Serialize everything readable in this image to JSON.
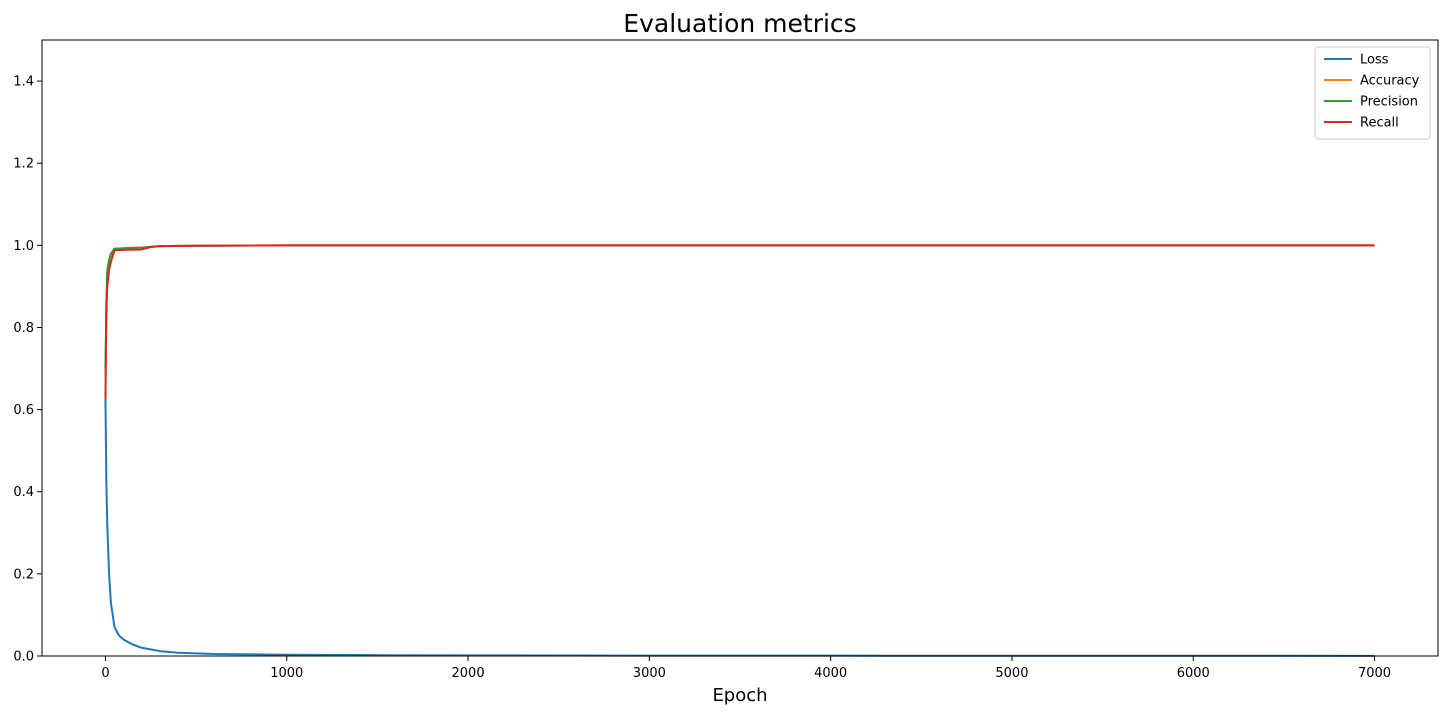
{
  "chart_data": {
    "type": "line",
    "title": "Evaluation metrics",
    "xlabel": "Epoch",
    "ylabel": "",
    "xlim": [
      -350,
      7350
    ],
    "ylim": [
      0,
      1.5
    ],
    "xticks": [
      0,
      1000,
      2000,
      3000,
      4000,
      5000,
      6000,
      7000
    ],
    "yticks": [
      0.0,
      0.2,
      0.4,
      0.6,
      0.8,
      1.0,
      1.2,
      1.4
    ],
    "grid": false,
    "legend_position": "top-right",
    "series": [
      {
        "name": "Loss",
        "color": "#1f77b4",
        "x": [
          0,
          5,
          10,
          20,
          30,
          50,
          75,
          100,
          150,
          200,
          300,
          400,
          600,
          800,
          1000,
          1500,
          2000,
          3000,
          4000,
          5000,
          6000,
          7000
        ],
        "y": [
          0.625,
          0.42,
          0.32,
          0.2,
          0.13,
          0.07,
          0.05,
          0.04,
          0.028,
          0.02,
          0.012,
          0.008,
          0.005,
          0.004,
          0.003,
          0.002,
          0.0015,
          0.001,
          0.0008,
          0.0006,
          0.0005,
          0.0004
        ]
      },
      {
        "name": "Accuracy",
        "color": "#ff7f0e",
        "x": [
          0,
          5,
          10,
          20,
          30,
          50,
          100,
          200,
          300,
          500,
          1000,
          7000
        ],
        "y": [
          0.68,
          0.85,
          0.93,
          0.96,
          0.975,
          0.99,
          0.993,
          0.995,
          0.998,
          0.999,
          1.0,
          1.0
        ]
      },
      {
        "name": "Precision",
        "color": "#2ca02c",
        "x": [
          0,
          5,
          10,
          20,
          30,
          50,
          100,
          200,
          300,
          500,
          1000,
          7000
        ],
        "y": [
          0.7,
          0.86,
          0.94,
          0.965,
          0.98,
          0.992,
          0.993,
          0.994,
          0.998,
          0.999,
          1.0,
          1.0
        ]
      },
      {
        "name": "Recall",
        "color": "#d62728",
        "x": [
          0,
          5,
          10,
          20,
          30,
          50,
          100,
          200,
          250,
          300,
          500,
          1000,
          7000
        ],
        "y": [
          0.625,
          0.83,
          0.9,
          0.94,
          0.96,
          0.988,
          0.989,
          0.99,
          0.996,
          0.998,
          0.999,
          1.0,
          1.0
        ]
      }
    ]
  }
}
